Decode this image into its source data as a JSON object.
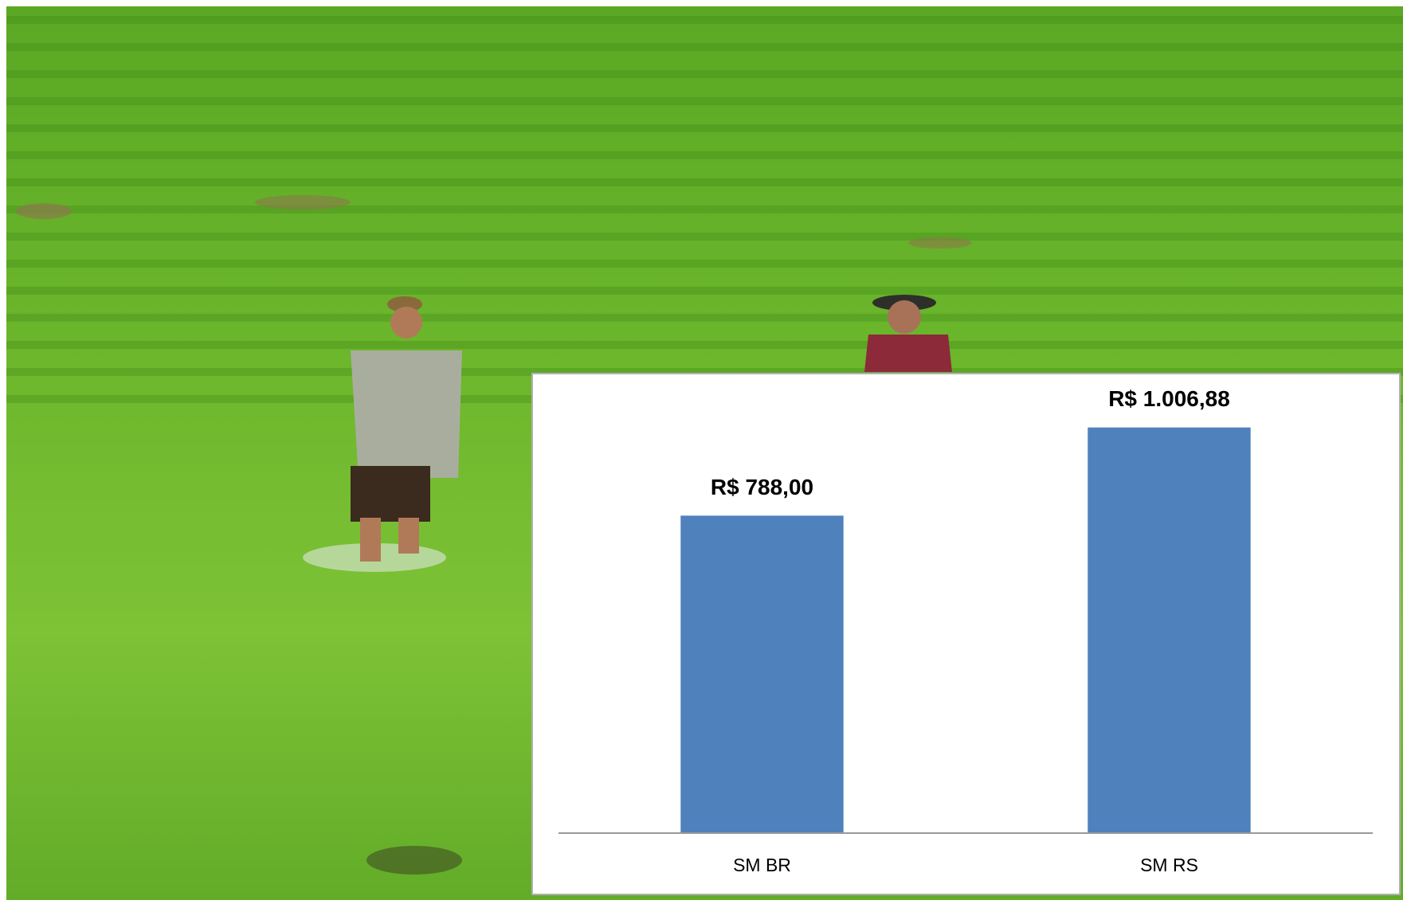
{
  "chart_data": {
    "type": "bar",
    "categories": [
      "SM BR",
      "SM RS"
    ],
    "values": [
      788,
      1006.88
    ],
    "value_labels": [
      "R$ 788,00",
      "R$ 1.006,88"
    ],
    "color": "#4f81bd",
    "ylim": [
      0,
      1200
    ]
  }
}
